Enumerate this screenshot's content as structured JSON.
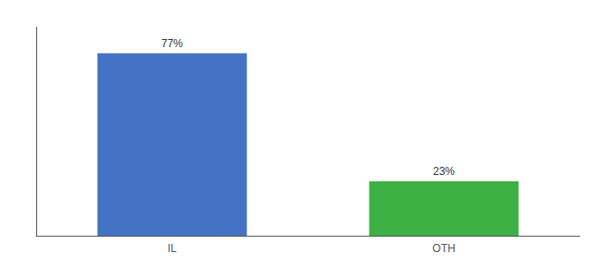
{
  "chart_data": {
    "type": "bar",
    "categories": [
      "IL",
      "OTH"
    ],
    "values": [
      77,
      23
    ],
    "colors": [
      "#4472C4",
      "#3CB043"
    ],
    "data_labels": true,
    "value_labels": [
      "77%",
      "23%"
    ],
    "ylim": [
      0,
      88
    ],
    "yticks": [],
    "tick_labels": "x",
    "grid": false
  }
}
